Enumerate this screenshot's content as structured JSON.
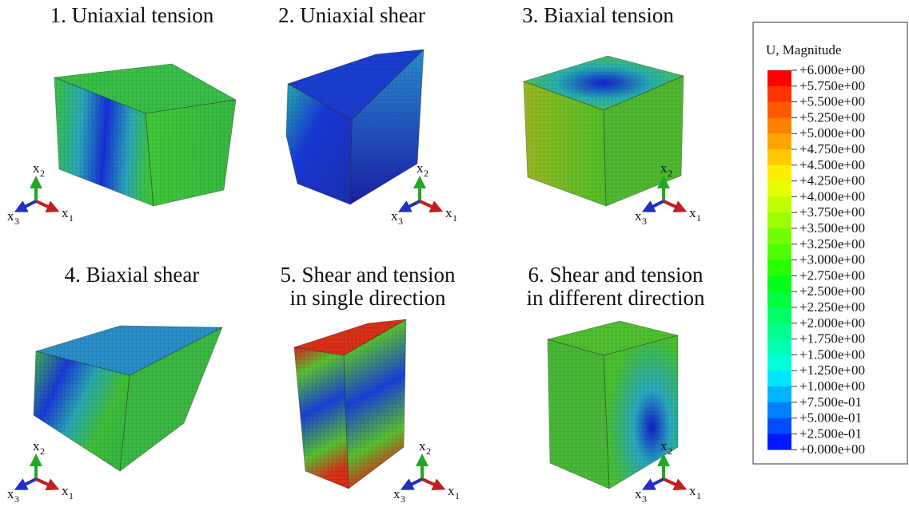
{
  "panels": [
    {
      "title_lines": [
        "1. Uniaxial tension"
      ]
    },
    {
      "title_lines": [
        "2. Uniaxial shear"
      ]
    },
    {
      "title_lines": [
        "3. Biaxial tension"
      ]
    },
    {
      "title_lines": [
        "4. Biaxial shear"
      ]
    },
    {
      "title_lines": [
        "5. Shear and tension",
        "in single direction"
      ]
    },
    {
      "title_lines": [
        "6. Shear and tension",
        "in different direction"
      ]
    }
  ],
  "triad": {
    "symbol": "x",
    "indices": [
      "1",
      "2",
      "3"
    ]
  },
  "legend": {
    "title": "U, Magnitude",
    "labels": [
      "+6.000e+00",
      "+5.750e+00",
      "+5.500e+00",
      "+5.250e+00",
      "+5.000e+00",
      "+4.750e+00",
      "+4.500e+00",
      "+4.250e+00",
      "+4.000e+00",
      "+3.750e+00",
      "+3.500e+00",
      "+3.250e+00",
      "+3.000e+00",
      "+2.750e+00",
      "+2.500e+00",
      "+2.250e+00",
      "+2.000e+00",
      "+1.750e+00",
      "+1.500e+00",
      "+1.250e+00",
      "+1.000e+00",
      "+7.500e-01",
      "+5.000e-01",
      "+2.500e-01",
      "+0.000e+00"
    ],
    "colors": [
      "#ff0000",
      "#ff3300",
      "#ff5a00",
      "#ff7f00",
      "#ffa400",
      "#ffc800",
      "#ffee00",
      "#e6ff00",
      "#c0ff00",
      "#9aff00",
      "#73ff00",
      "#4dff00",
      "#27ff00",
      "#00ff19",
      "#00ff3f",
      "#00ff66",
      "#00ff8c",
      "#00ffb2",
      "#00ffd9",
      "#00e6ff",
      "#00b3ff",
      "#0080ff",
      "#004cff",
      "#0019ff"
    ]
  }
}
